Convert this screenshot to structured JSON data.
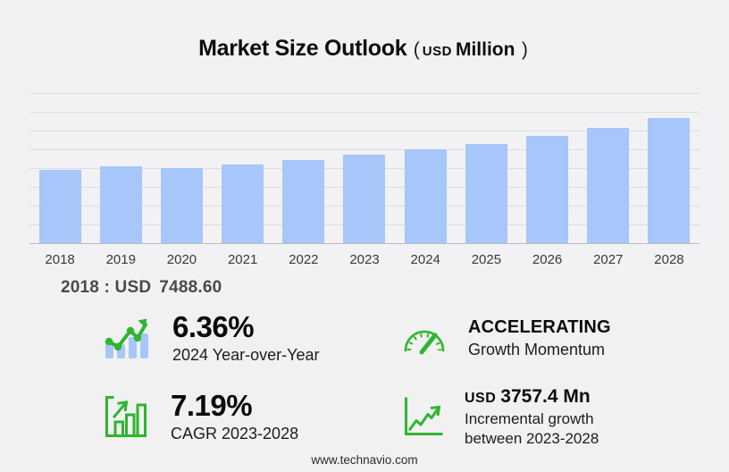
{
  "header": {
    "title": "Market Size Outlook",
    "paren_open": "(",
    "currency": "USD",
    "unit": "Million",
    "paren_close": ")"
  },
  "base_year_callout": {
    "label": "2018 : USD",
    "value": "7488.60"
  },
  "chart_data": {
    "type": "bar",
    "title": "Market Size Outlook",
    "unit": "USD Million",
    "categories": [
      "2018",
      "2019",
      "2020",
      "2021",
      "2022",
      "2023",
      "2024",
      "2025",
      "2026",
      "2027",
      "2028"
    ],
    "values": [
      7488.6,
      7850,
      7670,
      8040,
      8490,
      9050,
      9626,
      10200,
      11000,
      11820,
      12807.4
    ],
    "values_estimated": true,
    "labeled_values": {
      "2018": 7488.6
    },
    "ylim": [
      0,
      15750
    ],
    "grid": true,
    "y_axis_labels_shown": false,
    "bar_color": "#a7c6fa"
  },
  "stats": {
    "yoy": {
      "value": "6.36%",
      "label": "2024 Year-over-Year"
    },
    "momentum": {
      "value": "ACCELERATING",
      "label": "Growth Momentum"
    },
    "cagr": {
      "value": "7.19%",
      "label": "CAGR 2023-2028"
    },
    "incremental": {
      "currency": "USD",
      "value": "3757.4 Mn",
      "label_line1": "Incremental growth",
      "label_line2": "between 2023-2028"
    }
  },
  "footer": {
    "url": "www.technavio.com"
  },
  "colors": {
    "background": "#f2f2f4",
    "panel": "#f1f1f2",
    "bar": "#a7c6fa",
    "accent_green": "#2fb52f",
    "gridline": "#dddddf"
  }
}
